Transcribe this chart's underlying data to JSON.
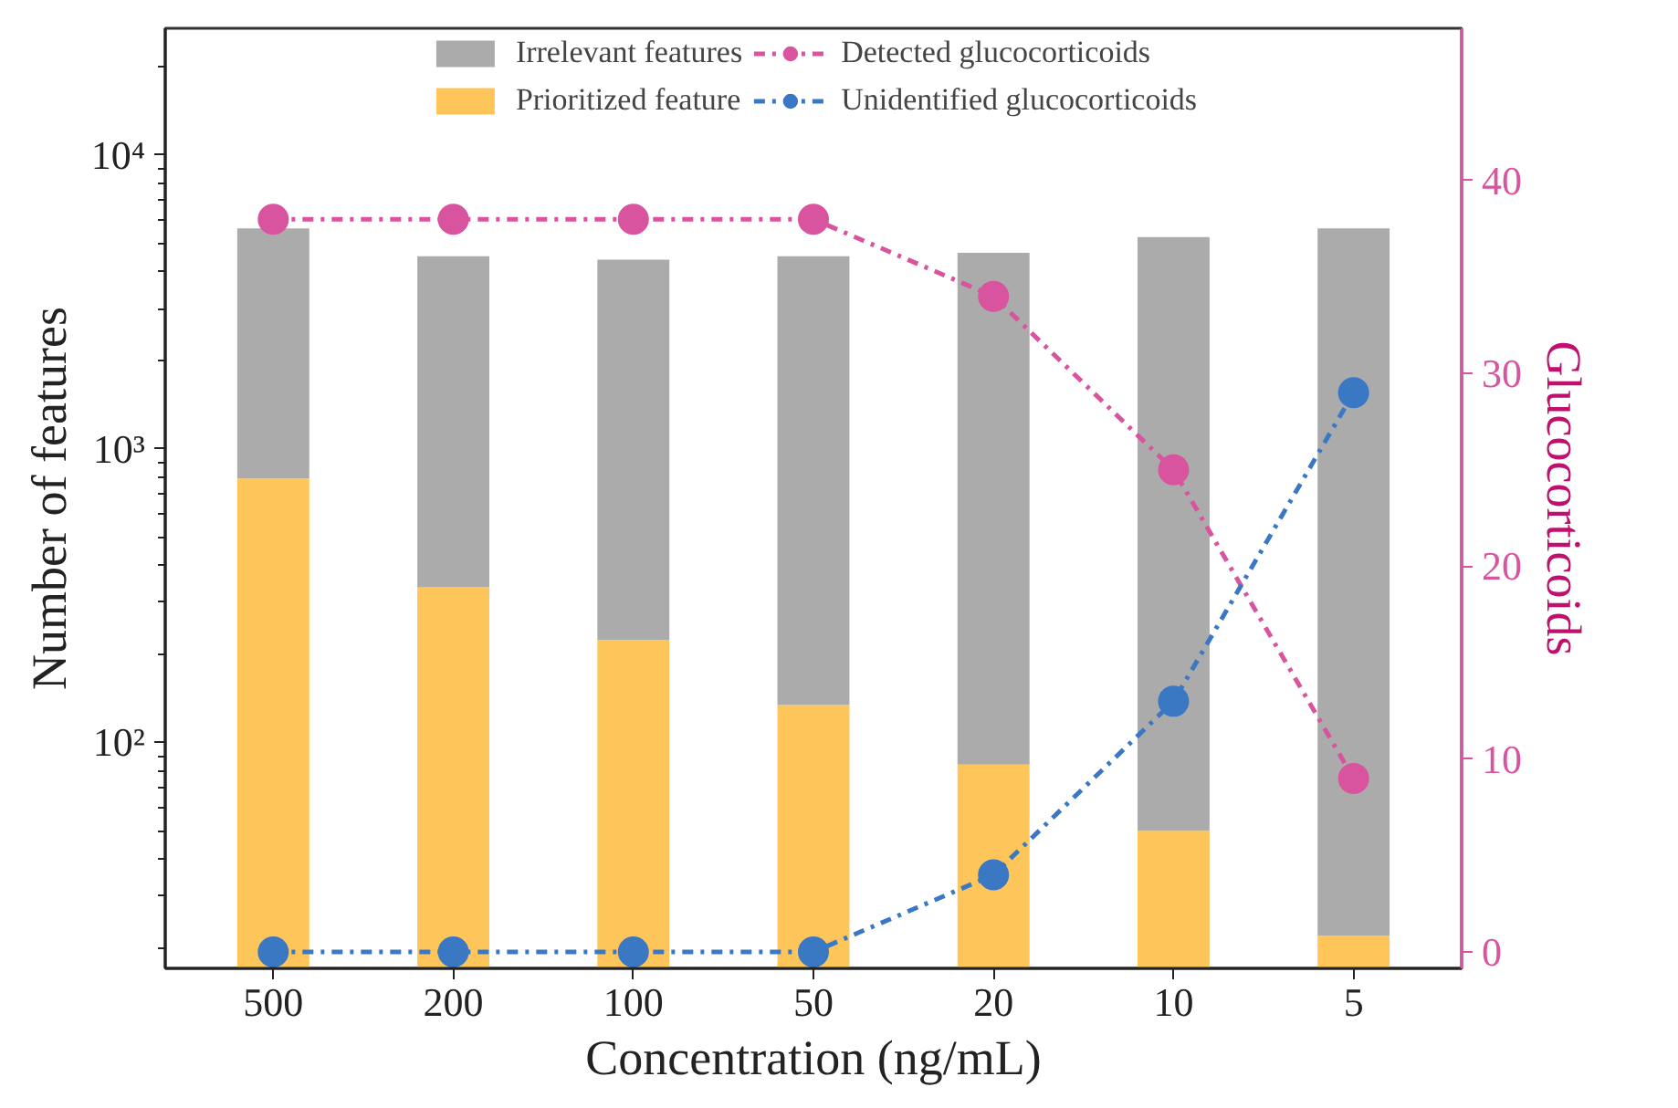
{
  "chart_data": {
    "type": "bar",
    "stacked": true,
    "xlabel": "Concentration (ng/mL)",
    "ylabel": "Number of features",
    "y2label": "Glucocorticoids",
    "categories": [
      "500",
      "200",
      "100",
      "50",
      "20",
      "10",
      "5"
    ],
    "log": "y",
    "ylim": [
      17,
      27000
    ],
    "yticks": [
      {
        "value": 100,
        "label": "10²"
      },
      {
        "value": 1000,
        "label": "10³"
      },
      {
        "value": 10000,
        "label": "10⁴"
      }
    ],
    "y2lim": [
      -0.85,
      47.9
    ],
    "y2ticks": [
      0,
      10,
      20,
      30,
      40
    ],
    "legend": "top",
    "grid": false,
    "marker": "circle",
    "line_style": "dashdot",
    "series": [
      {
        "name": "Prioritized feature",
        "color": "#fec65a",
        "values": [
          791,
          337,
          223,
          134,
          84,
          50,
          22
        ]
      },
      {
        "name": "Irrelevant features",
        "color": "#ababab",
        "values": [
          4830,
          4180,
          4180,
          4390,
          4560,
          5200,
          5600
        ]
      },
      {
        "name": "Detected glucocorticoids",
        "type": "line",
        "axis": "y2",
        "color": "#d9549e",
        "values": [
          38,
          38,
          38,
          38,
          34,
          25,
          9
        ]
      },
      {
        "name": "Unidentified glucocorticoids",
        "type": "line",
        "axis": "y2",
        "color": "#3a78c4",
        "values": [
          0,
          0,
          0,
          0,
          4,
          13,
          29
        ]
      }
    ]
  }
}
